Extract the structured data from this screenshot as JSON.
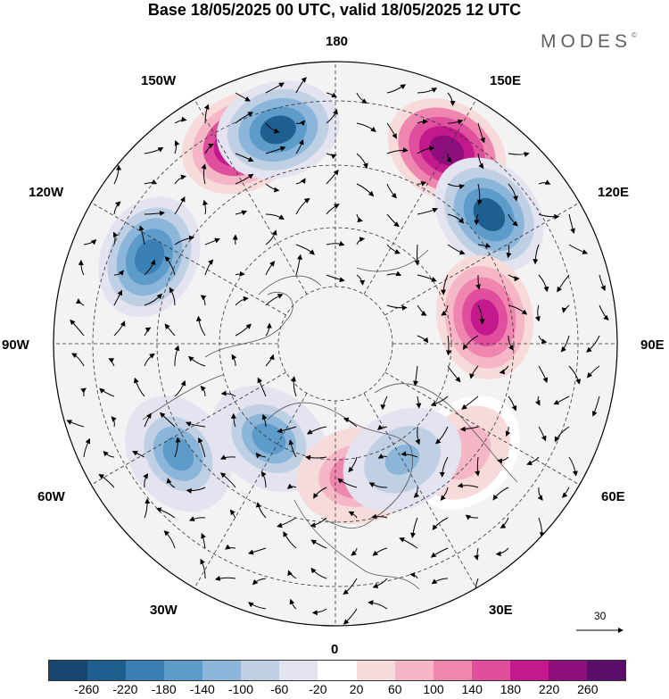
{
  "header": {
    "title": "Base 18/05/2025 00 UTC, valid 18/05/2025 12 UTC",
    "brand": "MODES",
    "brand_mark": "©"
  },
  "map": {
    "projection": "north-polar-stereographic",
    "longitude_labels": {
      "top": "180",
      "bottom": "0",
      "left": "90W",
      "right": "90E",
      "upper_left_1": "150W",
      "upper_left_2": "120W",
      "lower_left_1": "60W",
      "lower_left_2": "30W",
      "upper_right_1": "150E",
      "upper_right_2": "120E",
      "lower_right_1": "60E",
      "lower_right_2": "30E"
    },
    "vector_reference": {
      "value": "30",
      "icon": "right-arrow-icon"
    },
    "anomaly_centres": [
      {
        "lon": -155,
        "sign": "positive",
        "peak": 240
      },
      {
        "lon": -165,
        "sign": "negative",
        "peak": -220
      },
      {
        "lon": -115,
        "sign": "negative",
        "peak": -180
      },
      {
        "lon": 150,
        "sign": "positive",
        "peak": 260
      },
      {
        "lon": 130,
        "sign": "negative",
        "peak": -220
      },
      {
        "lon": 100,
        "sign": "positive",
        "peak": 200
      },
      {
        "lon": -55,
        "sign": "negative",
        "peak": -140
      },
      {
        "lon": -35,
        "sign": "negative",
        "peak": -140
      },
      {
        "lon": 10,
        "sign": "positive",
        "peak": 140
      },
      {
        "lon": 50,
        "sign": "positive",
        "peak": 100
      },
      {
        "lon": 30,
        "sign": "negative",
        "peak": -100
      }
    ]
  },
  "colorbar": {
    "colors": [
      "#16466e",
      "#1f5f90",
      "#3b80b5",
      "#5c9bca",
      "#8cb6d9",
      "#bfcfe4",
      "#e4e4f0",
      "#ffffff",
      "#f7dada",
      "#f5b6c6",
      "#ef86b0",
      "#df4f9d",
      "#c3198c",
      "#8f0e7d",
      "#5b0d6b"
    ],
    "tick_labels": [
      "-260",
      "-220",
      "-180",
      "-140",
      "-100",
      "-60",
      "-20",
      "20",
      "60",
      "100",
      "140",
      "180",
      "220",
      "260"
    ]
  }
}
